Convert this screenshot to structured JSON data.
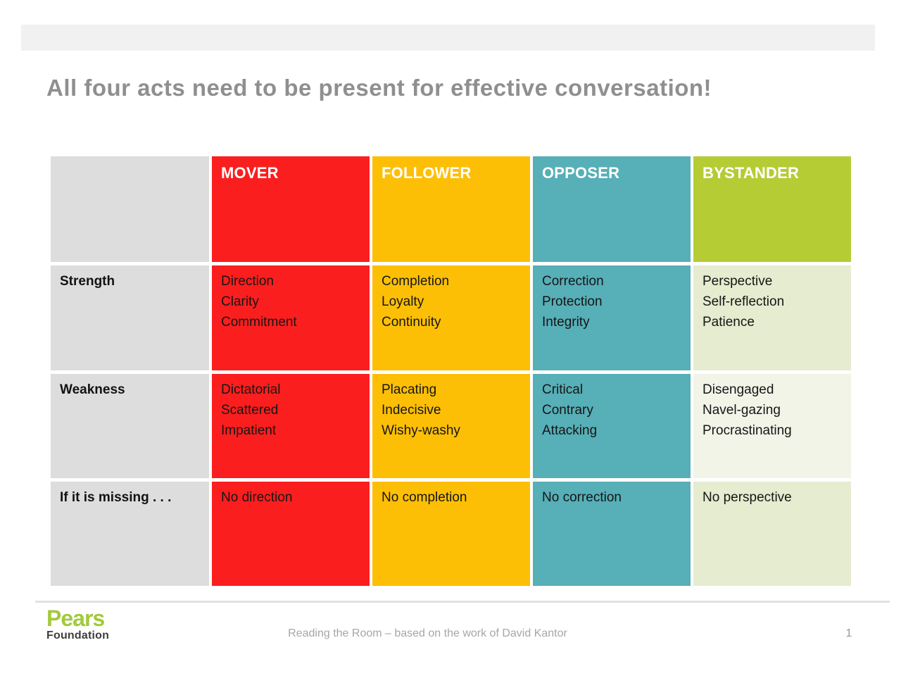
{
  "slide": {
    "title": "All four acts need to be present for effective conversation!",
    "colors": {
      "header_band": "#f1f1f1",
      "title_text": "#8f8f8f",
      "label_column": "#dddddd",
      "mover": "#fb1e1e",
      "follower": "#fdbf06",
      "opposer": "#57afb7",
      "bystander_header": "#b5cc35",
      "bystander_body_pale": "#e5eccf",
      "bystander_body_ivory": "#f2f4e8",
      "cell_text": "#161616",
      "header_text": "#ffffff",
      "pears_green": "#a3c93b",
      "foundation_gray": "#3e3e3c"
    },
    "table": {
      "columns": [
        {
          "label": "MOVER"
        },
        {
          "label": "FOLLOWER"
        },
        {
          "label": "OPPOSER"
        },
        {
          "label": "BYSTANDER"
        }
      ],
      "rows": [
        {
          "label": "Strength",
          "cells": [
            {
              "lines": [
                "Direction",
                "Clarity",
                "Commitment"
              ]
            },
            {
              "lines": [
                "Completion",
                "Loyalty",
                "Continuity"
              ]
            },
            {
              "lines": [
                "Correction",
                "Protection",
                "Integrity"
              ]
            },
            {
              "lines": [
                "Perspective",
                "Self-reflection",
                "Patience"
              ]
            }
          ]
        },
        {
          "label": "Weakness",
          "cells": [
            {
              "lines": [
                "Dictatorial",
                "Scattered",
                "Impatient"
              ]
            },
            {
              "lines": [
                "Placating",
                "Indecisive",
                "Wishy-washy"
              ]
            },
            {
              "lines": [
                "Critical",
                "Contrary",
                "Attacking"
              ]
            },
            {
              "lines": [
                "Disengaged",
                "Navel-gazing",
                "Procrastinating"
              ]
            }
          ]
        },
        {
          "label": "If it is missing . . .",
          "cells": [
            {
              "lines": [
                "No direction"
              ]
            },
            {
              "lines": [
                "No completion"
              ]
            },
            {
              "lines": [
                "No correction"
              ]
            },
            {
              "lines": [
                "No perspective"
              ]
            }
          ]
        }
      ]
    },
    "footer": {
      "logo_line1": "Pears",
      "logo_line2": "Foundation",
      "caption": "Reading the Room – based on the work of David Kantor",
      "page_number": "1"
    }
  }
}
